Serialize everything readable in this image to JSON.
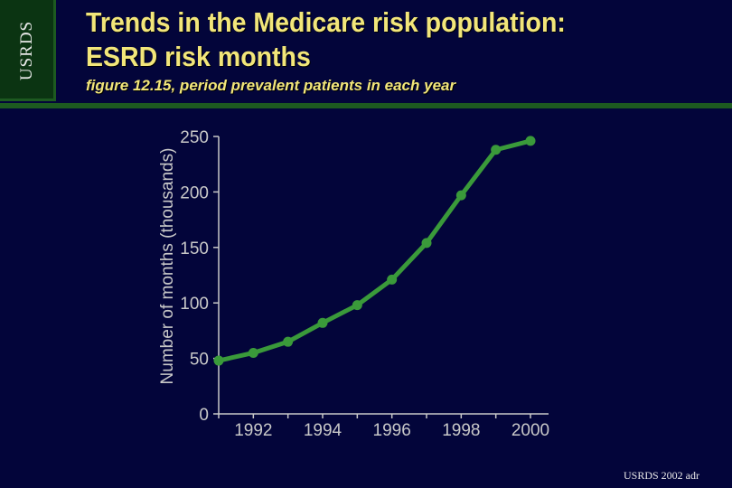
{
  "logo": {
    "text": "USRDS"
  },
  "header": {
    "title_line1": "Trends in the Medicare risk population:",
    "title_line2": "ESRD risk months",
    "subtitle": "figure 12.15, period prevalent patients in each year"
  },
  "footer": {
    "text": "USRDS 2002 adr"
  },
  "colors": {
    "background": "#03053a",
    "accent_green": "#1d5a20",
    "title_yellow": "#f2e67a",
    "series_line": "#3a9a3a"
  },
  "chart_data": {
    "type": "line",
    "title": "",
    "xlabel": "",
    "ylabel": "Number of months (thousands)",
    "xlim": [
      1991,
      2000
    ],
    "ylim": [
      0,
      250
    ],
    "x_ticks": [
      1992,
      1994,
      1996,
      1998,
      2000
    ],
    "y_ticks": [
      0,
      50,
      100,
      150,
      200,
      250
    ],
    "grid": false,
    "legend": "none",
    "series": [
      {
        "x": [
          1991,
          1992,
          1993,
          1994,
          1995,
          1996,
          1997,
          1998,
          1999,
          2000
        ],
        "values": [
          48,
          55,
          65,
          82,
          98,
          121,
          154,
          197,
          238,
          246
        ]
      }
    ]
  }
}
